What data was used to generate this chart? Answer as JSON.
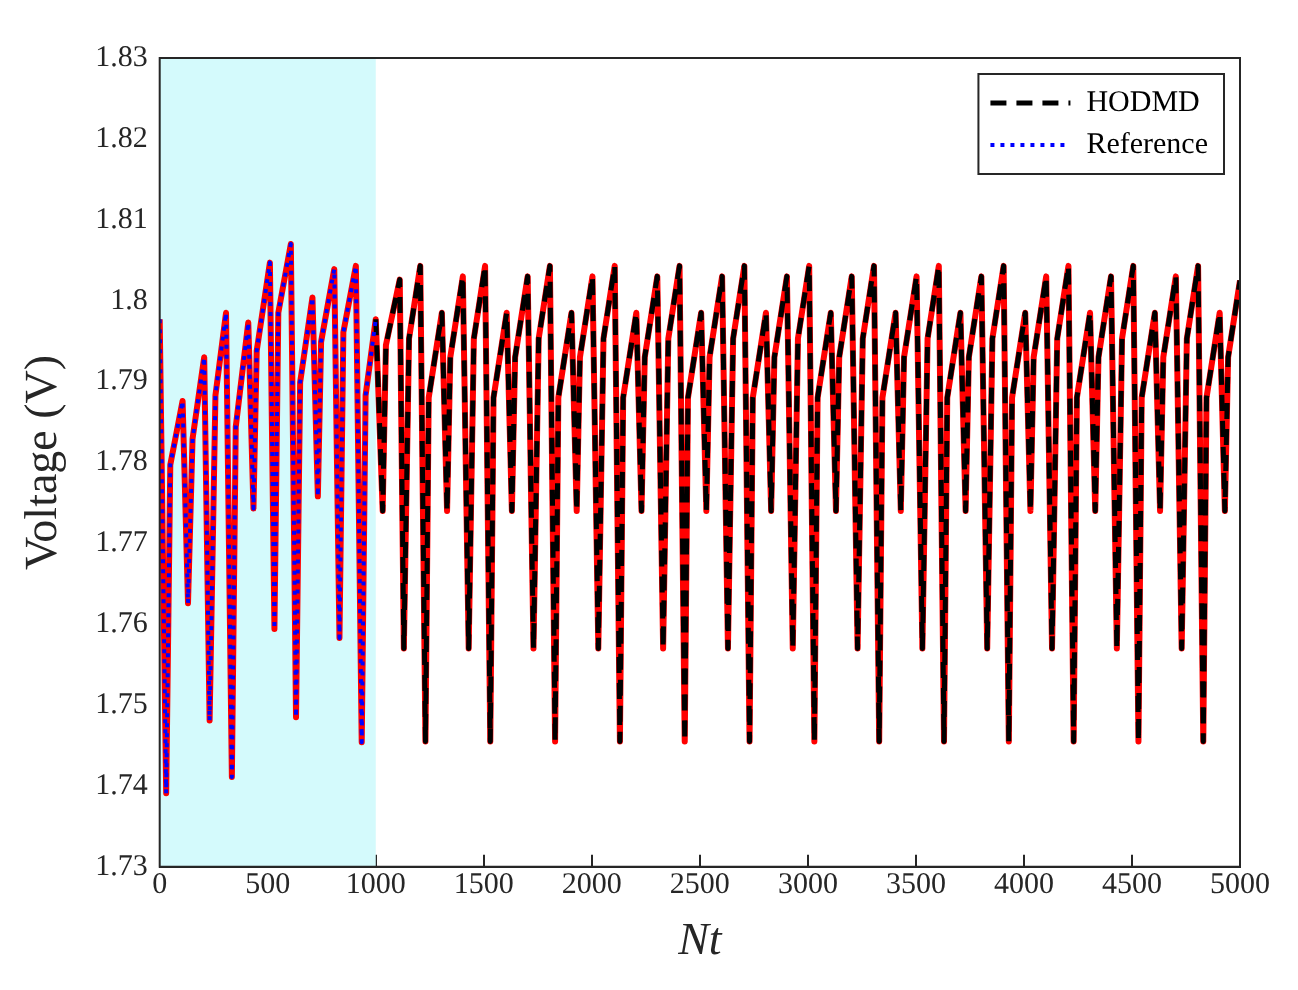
{
  "chart_data": {
    "type": "line",
    "xlabel": "Nt",
    "ylabel": "Voltage (V)",
    "xlim": [
      0,
      5000
    ],
    "ylim": [
      1.73,
      1.83
    ],
    "xticks": [
      0,
      500,
      1000,
      1500,
      2000,
      2500,
      3000,
      3500,
      4000,
      4500,
      5000
    ],
    "yticks": [
      1.73,
      1.74,
      1.75,
      1.76,
      1.77,
      1.78,
      1.79,
      1.8,
      1.81,
      1.82,
      1.83
    ],
    "grid": false,
    "legend": "top right",
    "bands": [
      {
        "axis": "x",
        "from": 0,
        "to": 1000,
        "color": "#d4fafc"
      }
    ],
    "series": [
      {
        "color": "#ff0000",
        "line_style": "solid",
        "x": [
          0,
          30,
          49,
          106,
          131,
          152,
          206,
          231,
          258,
          307,
          334,
          352,
          410,
          434,
          449,
          510,
          531,
          549,
          607,
          631,
          650,
          707,
          732,
          747,
          808,
          832,
          850,
          908,
          935,
          953,
          1000,
          1032,
          1047,
          1111,
          1130,
          1154,
          1206,
          1230,
          1245,
          1306,
          1330,
          1345,
          1403,
          1430,
          1454,
          1506,
          1530,
          1545,
          1606,
          1630,
          1645,
          1703,
          1730,
          1754,
          1806,
          1830,
          1845,
          1906,
          1930,
          1945,
          2003,
          2030,
          2054,
          2106,
          2130,
          2145,
          2206,
          2230,
          2245,
          2303,
          2330,
          2354,
          2406,
          2430,
          2445,
          2506,
          2530,
          2545,
          2603,
          2630,
          2654,
          2706,
          2730,
          2745,
          2806,
          2830,
          2845,
          2903,
          2930,
          2954,
          3006,
          3030,
          3045,
          3106,
          3130,
          3145,
          3203,
          3230,
          3254,
          3306,
          3330,
          3345,
          3406,
          3430,
          3445,
          3503,
          3530,
          3554,
          3606,
          3630,
          3645,
          3706,
          3730,
          3745,
          3803,
          3830,
          3854,
          3906,
          3930,
          3945,
          4006,
          4030,
          4045,
          4103,
          4130,
          4154,
          4206,
          4230,
          4245,
          4306,
          4330,
          4345,
          4403,
          4430,
          4454,
          4506,
          4530,
          4545,
          4606,
          4630,
          4645,
          4703,
          4730,
          4754,
          4806,
          4830,
          4845,
          4906,
          4930,
          4945,
          5000
        ],
        "values": [
          1.7977,
          1.7391,
          1.7797,
          1.7876,
          1.7626,
          1.7829,
          1.793,
          1.7481,
          1.7883,
          1.7985,
          1.7411,
          1.7844,
          1.7973,
          1.7743,
          1.7938,
          1.8047,
          1.7594,
          1.7985,
          1.807,
          1.7485,
          1.7899,
          1.8004,
          1.7758,
          1.7949,
          1.8039,
          1.7583,
          1.7961,
          1.8043,
          1.7454,
          1.7883,
          1.7977,
          1.774,
          1.7945,
          1.8026,
          1.757,
          1.7953,
          1.8043,
          1.7455,
          1.788,
          1.7985,
          1.774,
          1.793,
          1.803,
          1.757,
          1.7953,
          1.8043,
          1.7455,
          1.788,
          1.7985,
          1.774,
          1.793,
          1.803,
          1.757,
          1.7953,
          1.8043,
          1.7455,
          1.788,
          1.7985,
          1.774,
          1.793,
          1.803,
          1.757,
          1.7953,
          1.8043,
          1.7455,
          1.788,
          1.7985,
          1.774,
          1.793,
          1.803,
          1.757,
          1.7953,
          1.8043,
          1.7455,
          1.788,
          1.7985,
          1.774,
          1.793,
          1.803,
          1.757,
          1.7953,
          1.8043,
          1.7455,
          1.788,
          1.7985,
          1.774,
          1.793,
          1.803,
          1.757,
          1.7953,
          1.8043,
          1.7455,
          1.788,
          1.7985,
          1.774,
          1.793,
          1.803,
          1.757,
          1.7953,
          1.8043,
          1.7455,
          1.788,
          1.7985,
          1.774,
          1.793,
          1.803,
          1.757,
          1.7953,
          1.8043,
          1.7455,
          1.788,
          1.7985,
          1.774,
          1.793,
          1.803,
          1.757,
          1.7953,
          1.8043,
          1.7455,
          1.788,
          1.7985,
          1.774,
          1.793,
          1.803,
          1.757,
          1.7953,
          1.8043,
          1.7455,
          1.788,
          1.7985,
          1.774,
          1.793,
          1.803,
          1.757,
          1.7953,
          1.8043,
          1.7455,
          1.788,
          1.7985,
          1.774,
          1.793,
          1.803,
          1.757,
          1.7953,
          1.8043,
          1.7455,
          1.788,
          1.7985,
          1.774,
          1.793,
          1.8025
        ]
      },
      {
        "name": "HODMD",
        "color": "#000000",
        "line_style": "dashed",
        "x": [
          1000,
          1032,
          1047,
          1111,
          1130,
          1154,
          1206,
          1230,
          1245,
          1306,
          1330,
          1345,
          1403,
          1430,
          1454,
          1506,
          1530,
          1545,
          1606,
          1630,
          1645,
          1703,
          1730,
          1754,
          1806,
          1830,
          1845,
          1906,
          1930,
          1945,
          2003,
          2030,
          2054,
          2106,
          2130,
          2145,
          2206,
          2230,
          2245,
          2303,
          2330,
          2354,
          2406,
          2430,
          2445,
          2506,
          2530,
          2545,
          2603,
          2630,
          2654,
          2706,
          2730,
          2745,
          2806,
          2830,
          2845,
          2903,
          2930,
          2954,
          3006,
          3030,
          3045,
          3106,
          3130,
          3145,
          3203,
          3230,
          3254,
          3306,
          3330,
          3345,
          3406,
          3430,
          3445,
          3503,
          3530,
          3554,
          3606,
          3630,
          3645,
          3706,
          3730,
          3745,
          3803,
          3830,
          3854,
          3906,
          3930,
          3945,
          4006,
          4030,
          4045,
          4103,
          4130,
          4154,
          4206,
          4230,
          4245,
          4306,
          4330,
          4345,
          4403,
          4430,
          4454,
          4506,
          4530,
          4545,
          4606,
          4630,
          4645,
          4703,
          4730,
          4754,
          4806,
          4830,
          4845,
          4906,
          4930,
          4945,
          5000
        ],
        "values": [
          1.7977,
          1.774,
          1.7945,
          1.8026,
          1.757,
          1.7953,
          1.8043,
          1.7455,
          1.788,
          1.7985,
          1.774,
          1.793,
          1.803,
          1.757,
          1.7953,
          1.8043,
          1.7455,
          1.788,
          1.7985,
          1.774,
          1.793,
          1.803,
          1.757,
          1.7953,
          1.8043,
          1.7455,
          1.788,
          1.7985,
          1.774,
          1.793,
          1.803,
          1.757,
          1.7953,
          1.8043,
          1.7455,
          1.788,
          1.7985,
          1.774,
          1.793,
          1.803,
          1.757,
          1.7953,
          1.8043,
          1.7455,
          1.788,
          1.7985,
          1.774,
          1.793,
          1.803,
          1.757,
          1.7953,
          1.8043,
          1.7455,
          1.788,
          1.7985,
          1.774,
          1.793,
          1.803,
          1.757,
          1.7953,
          1.8043,
          1.7455,
          1.788,
          1.7985,
          1.774,
          1.793,
          1.803,
          1.757,
          1.7953,
          1.8043,
          1.7455,
          1.788,
          1.7985,
          1.774,
          1.793,
          1.803,
          1.757,
          1.7953,
          1.8043,
          1.7455,
          1.788,
          1.7985,
          1.774,
          1.793,
          1.803,
          1.757,
          1.7953,
          1.8043,
          1.7455,
          1.788,
          1.7985,
          1.774,
          1.793,
          1.803,
          1.757,
          1.7953,
          1.8043,
          1.7455,
          1.788,
          1.7985,
          1.774,
          1.793,
          1.803,
          1.757,
          1.7953,
          1.8043,
          1.7455,
          1.788,
          1.7985,
          1.774,
          1.793,
          1.803,
          1.757,
          1.7953,
          1.8043,
          1.7455,
          1.788,
          1.7985,
          1.774,
          1.793,
          1.8025
        ]
      },
      {
        "name": "Reference",
        "color": "#0000ff",
        "line_style": "dotted",
        "x": [
          0,
          30,
          49,
          106,
          131,
          152,
          206,
          231,
          258,
          307,
          334,
          352,
          410,
          434,
          449,
          510,
          531,
          549,
          607,
          631,
          650,
          707,
          732,
          747,
          808,
          832,
          850,
          908,
          935,
          953,
          1000
        ],
        "values": [
          1.7977,
          1.7391,
          1.7797,
          1.7876,
          1.7626,
          1.7829,
          1.793,
          1.7481,
          1.7883,
          1.7985,
          1.7411,
          1.7844,
          1.7973,
          1.7743,
          1.7938,
          1.8047,
          1.7594,
          1.7985,
          1.807,
          1.7485,
          1.7899,
          1.8004,
          1.7758,
          1.7949,
          1.8039,
          1.7583,
          1.7961,
          1.8043,
          1.7454,
          1.7883,
          1.7977
        ]
      }
    ]
  }
}
